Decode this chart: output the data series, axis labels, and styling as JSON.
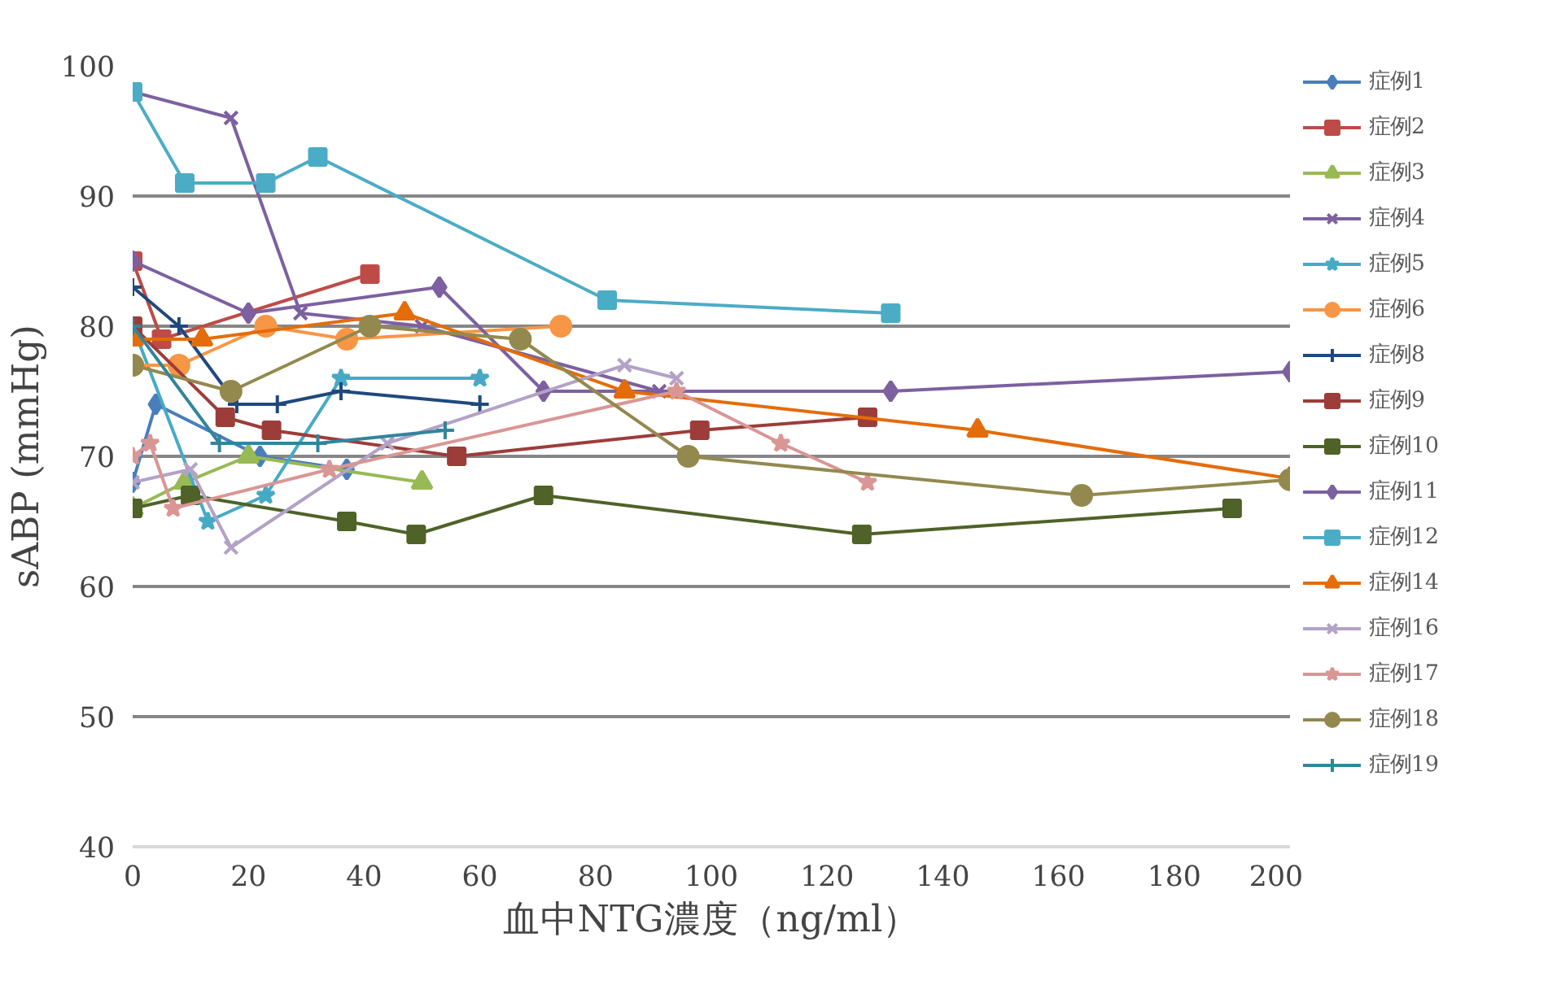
{
  "chart_data": {
    "type": "line",
    "xlabel": "血中NTG濃度（ng/ml）",
    "ylabel": "sABP (mmHg)",
    "xlim": [
      0,
      200
    ],
    "xticks": [
      0,
      20,
      40,
      60,
      80,
      100,
      120,
      140,
      160,
      180,
      200
    ],
    "ylim": [
      40,
      100
    ],
    "yticks": [
      40,
      50,
      60,
      70,
      80,
      90,
      100
    ],
    "grid": "y",
    "legend": "right",
    "series": [
      {
        "name": "症例1",
        "color": "#4a7ebb",
        "marker": "diamond",
        "x": [
          0,
          4,
          22,
          37
        ],
        "values": [
          68,
          74,
          70,
          69
        ]
      },
      {
        "name": "症例2",
        "color": "#be4b48",
        "marker": "square",
        "x": [
          0,
          5,
          41
        ],
        "values": [
          85,
          79,
          84
        ]
      },
      {
        "name": "症例3",
        "color": "#98b954",
        "marker": "triangle",
        "x": [
          0,
          9,
          20,
          50
        ],
        "values": [
          66,
          68,
          70,
          68
        ]
      },
      {
        "name": "症例4",
        "color": "#7d60a0",
        "marker": "cross",
        "x": [
          0,
          17,
          29,
          50,
          91
        ],
        "values": [
          98,
          96,
          81,
          80,
          75
        ]
      },
      {
        "name": "症例5",
        "color": "#46aac5",
        "marker": "star",
        "x": [
          0,
          13,
          23,
          36,
          60
        ],
        "values": [
          80,
          65,
          67,
          76,
          76
        ]
      },
      {
        "name": "症例6",
        "color": "#f79646",
        "marker": "circle",
        "x": [
          0,
          8,
          23,
          37,
          74
        ],
        "values": [
          77,
          77,
          80,
          79,
          80
        ]
      },
      {
        "name": "症例8",
        "color": "#1f497d",
        "marker": "plus",
        "x": [
          0,
          8,
          18,
          25,
          36,
          60
        ],
        "values": [
          83,
          80,
          74,
          74,
          75,
          74
        ]
      },
      {
        "name": "症例9",
        "color": "#9c3d3a",
        "marker": "square",
        "x": [
          0,
          16,
          24,
          56,
          98,
          127
        ],
        "values": [
          80,
          73,
          72,
          70,
          72,
          73
        ]
      },
      {
        "name": "症例10",
        "color": "#4f6228",
        "marker": "square",
        "x": [
          0,
          10,
          37,
          49,
          71,
          126,
          190
        ],
        "values": [
          66,
          67,
          65,
          64,
          67,
          64,
          66
        ]
      },
      {
        "name": "症例11",
        "color": "#7d60a0",
        "marker": "diamond",
        "x": [
          0,
          20,
          53,
          71,
          131,
          200
        ],
        "values": [
          85,
          81,
          83,
          75,
          75,
          76.5
        ]
      },
      {
        "name": "症例12",
        "color": "#4bacc6",
        "marker": "square",
        "x": [
          0,
          9,
          23,
          32,
          82,
          131
        ],
        "values": [
          98,
          91,
          91,
          93,
          82,
          81
        ]
      },
      {
        "name": "症例14",
        "color": "#e46c0a",
        "marker": "triangle",
        "x": [
          0,
          12,
          47,
          85,
          146,
          200
        ],
        "values": [
          79,
          79,
          81,
          75,
          72,
          68.3
        ]
      },
      {
        "name": "症例16",
        "color": "#b3a2c7",
        "marker": "cross",
        "x": [
          0,
          10,
          17,
          44,
          85,
          94
        ],
        "values": [
          68,
          69,
          63,
          71,
          77,
          76
        ]
      },
      {
        "name": "症例17",
        "color": "#d99694",
        "marker": "star",
        "x": [
          0,
          3,
          7,
          34,
          94,
          112,
          127
        ],
        "values": [
          70,
          71,
          66,
          69,
          75,
          71,
          68
        ]
      },
      {
        "name": "症例18",
        "color": "#93894f",
        "marker": "circle",
        "x": [
          0,
          17,
          41,
          67,
          96,
          164,
          200
        ],
        "values": [
          77,
          75,
          80,
          79,
          70,
          67,
          68.2
        ]
      },
      {
        "name": "症例19",
        "color": "#31859c",
        "marker": "plus",
        "x": [
          0,
          15,
          32,
          54
        ],
        "values": [
          80,
          71,
          71,
          72
        ]
      }
    ]
  }
}
